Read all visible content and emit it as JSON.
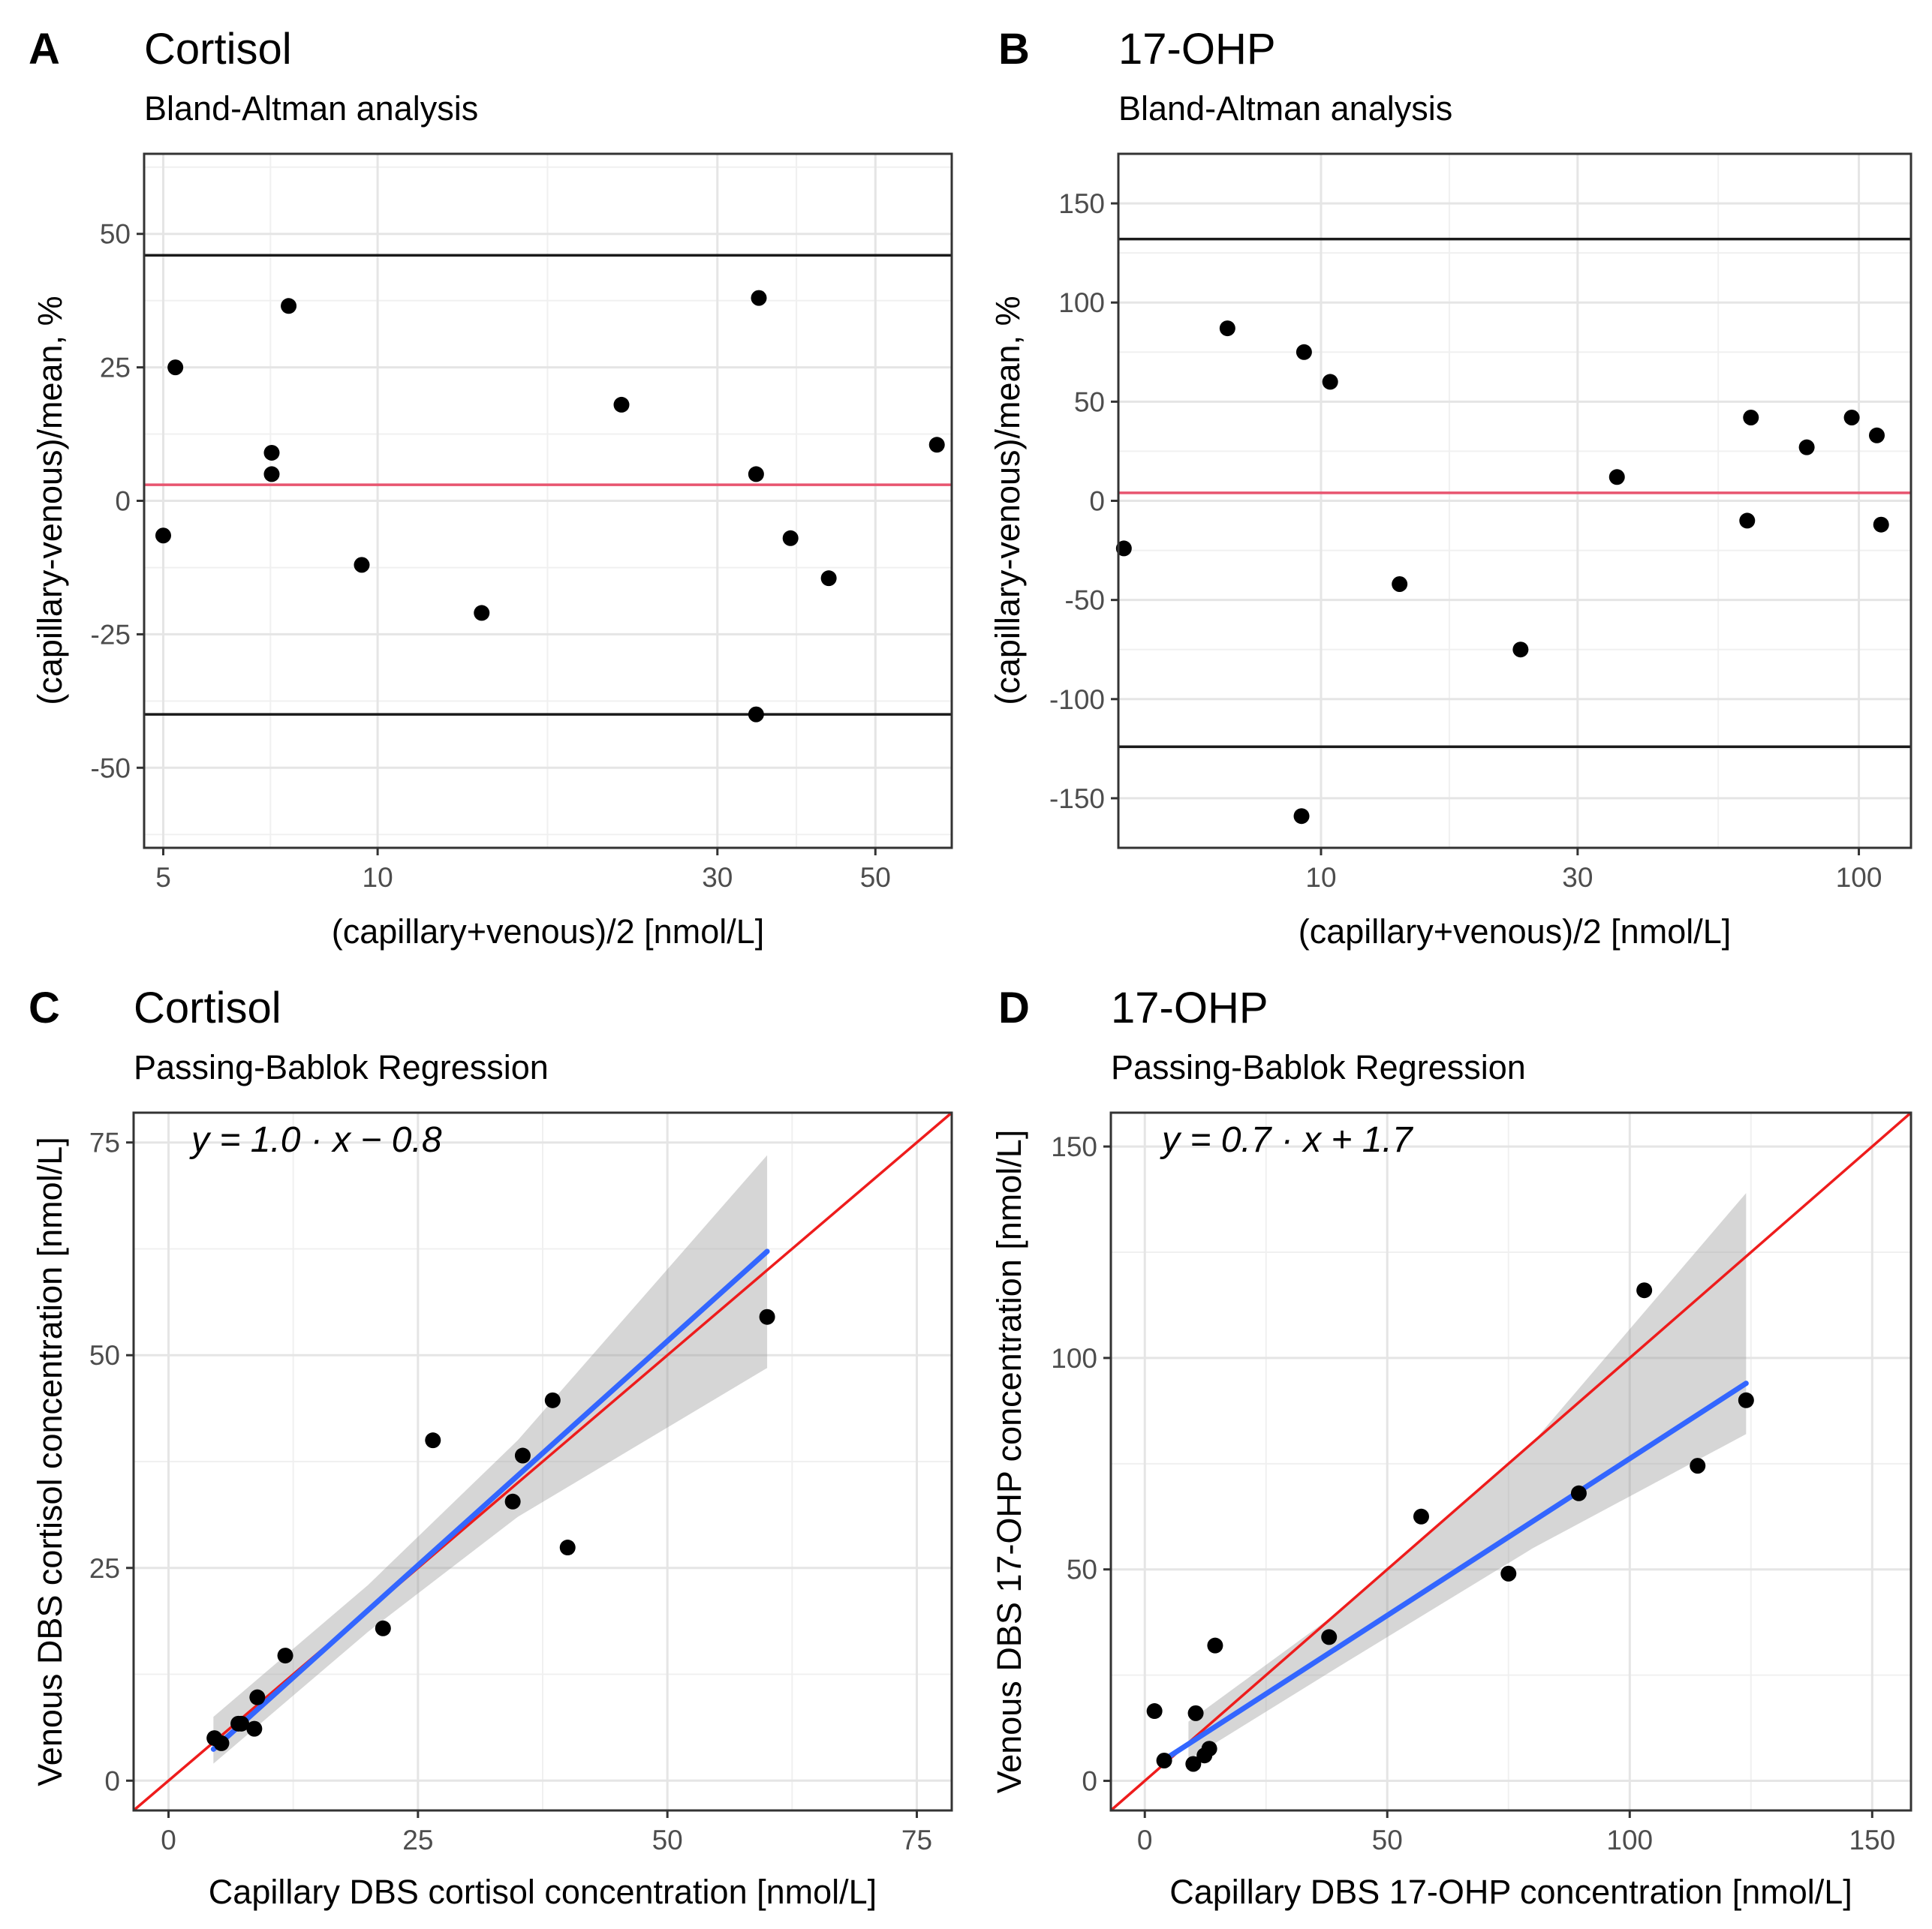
{
  "chart_data": [
    {
      "panel": "A",
      "type": "scatter",
      "title": "Cortisol",
      "subtitle": "Bland-Altman analysis",
      "xlabel": "(capillary+venous)/2 [nmol/L]",
      "ylabel": "(capillary-venous)/mean, %",
      "xscale": "log10",
      "xlim": [
        4.7,
        64
      ],
      "ylim": [
        -65,
        65
      ],
      "xticks": [
        5,
        10,
        30,
        50
      ],
      "yticks": [
        -50,
        -25,
        0,
        25,
        50
      ],
      "grid": true,
      "hlines": [
        {
          "name": "upper limit of agreement",
          "value": 46,
          "color": "#1a1a1a"
        },
        {
          "name": "mean difference",
          "value": 3,
          "color": "#e8556f"
        },
        {
          "name": "lower limit of agreement",
          "value": -40,
          "color": "#1a1a1a"
        }
      ],
      "points": {
        "x": [
          5,
          5.2,
          7.1,
          7.1,
          7.5,
          9.5,
          14,
          22,
          34,
          34,
          34.3,
          38,
          43,
          61
        ],
        "y": [
          -6.5,
          25,
          9,
          5,
          36.5,
          -12,
          -21,
          18,
          -40,
          5,
          38,
          -7,
          -14.5,
          10.5
        ]
      }
    },
    {
      "panel": "B",
      "type": "scatter",
      "title": "17-OHP",
      "subtitle": "Bland-Altman analysis",
      "xlabel": "(capillary+venous)/2 [nmol/L]",
      "ylabel": "(capillary-venous)/mean, %",
      "xscale": "log10",
      "xlim": [
        4.2,
        125
      ],
      "ylim": [
        -175,
        175
      ],
      "xticks": [
        10,
        30,
        100
      ],
      "yticks": [
        -150,
        -100,
        -50,
        0,
        50,
        100,
        150
      ],
      "grid": true,
      "hlines": [
        {
          "name": "upper limit of agreement",
          "value": 132,
          "color": "#1a1a1a"
        },
        {
          "name": "mean difference",
          "value": 4,
          "color": "#e8556f"
        },
        {
          "name": "lower limit of agreement",
          "value": -124,
          "color": "#1a1a1a"
        }
      ],
      "points": {
        "x": [
          4.3,
          6.7,
          9.3,
          9.2,
          10.4,
          14,
          23.5,
          35.5,
          62,
          63,
          80,
          97,
          108,
          110
        ],
        "y": [
          -24,
          87,
          75,
          -159,
          60,
          -42,
          -75,
          12,
          -10,
          42,
          27,
          42,
          33,
          -12
        ]
      }
    },
    {
      "panel": "C",
      "type": "scatter",
      "title": "Cortisol",
      "subtitle": "Passing-Bablok Regression",
      "equation": "y = 1.0 · x − 0.8",
      "xlabel": "Capillary DBS cortisol concentration [nmol/L]",
      "ylabel": "Venous DBS cortisol concentration [nmol/L]",
      "xlim": [
        -3.5,
        78.5
      ],
      "ylim": [
        -3.5,
        78.5
      ],
      "xticks": [
        0,
        25,
        50,
        75
      ],
      "yticks": [
        0,
        25,
        50,
        75
      ],
      "grid": true,
      "identity_line": {
        "color": "#ee1c1c"
      },
      "fit_line": {
        "x": [
          4.5,
          60
        ],
        "y": [
          3.7,
          62.2
        ],
        "color": "#3366ff"
      },
      "confidence_band": {
        "x": [
          4.5,
          20,
          35,
          60
        ],
        "upper": [
          7.5,
          23,
          40,
          73.5
        ],
        "lower": [
          2,
          17.5,
          31,
          48.5
        ]
      },
      "points": {
        "x": [
          4.6,
          5.3,
          7,
          7.3,
          8.6,
          8.9,
          11.7,
          21.5,
          26.5,
          34.5,
          35.5,
          38.5,
          40,
          60
        ],
        "y": [
          5,
          4.4,
          6.7,
          6.7,
          6.1,
          9.8,
          14.7,
          17.9,
          40,
          32.8,
          38.2,
          44.7,
          27.4,
          54.5
        ]
      }
    },
    {
      "panel": "D",
      "type": "scatter",
      "title": "17-OHP",
      "subtitle": "Passing-Bablok Regression",
      "equation": "y = 0.7 · x + 1.7",
      "xlabel": "Capillary DBS 17-OHP concentration [nmol/L]",
      "ylabel": "Venous DBS 17-OHP concentration [nmol/L]",
      "xlim": [
        -7,
        158
      ],
      "ylim": [
        -7,
        158
      ],
      "xticks": [
        0,
        50,
        100,
        150
      ],
      "yticks": [
        0,
        50,
        100,
        150
      ],
      "grid": true,
      "identity_line": {
        "color": "#ee1c1c"
      },
      "fit_line": {
        "x": [
          4,
          124
        ],
        "y": [
          5,
          94
        ],
        "color": "#3366ff"
      },
      "confidence_band": {
        "x": [
          9,
          40,
          80,
          124
        ],
        "upper": [
          14,
          40,
          80,
          139
        ],
        "lower": [
          5,
          27,
          55,
          82
        ]
      },
      "points": {
        "x": [
          2,
          4,
          10,
          10.5,
          12.3,
          13.3,
          14.5,
          38,
          57,
          75,
          89.5,
          103,
          114,
          124
        ],
        "y": [
          16.5,
          4.8,
          4,
          16,
          6,
          7.6,
          32,
          34,
          62.5,
          49,
          68,
          116,
          74.5,
          90
        ]
      }
    }
  ]
}
